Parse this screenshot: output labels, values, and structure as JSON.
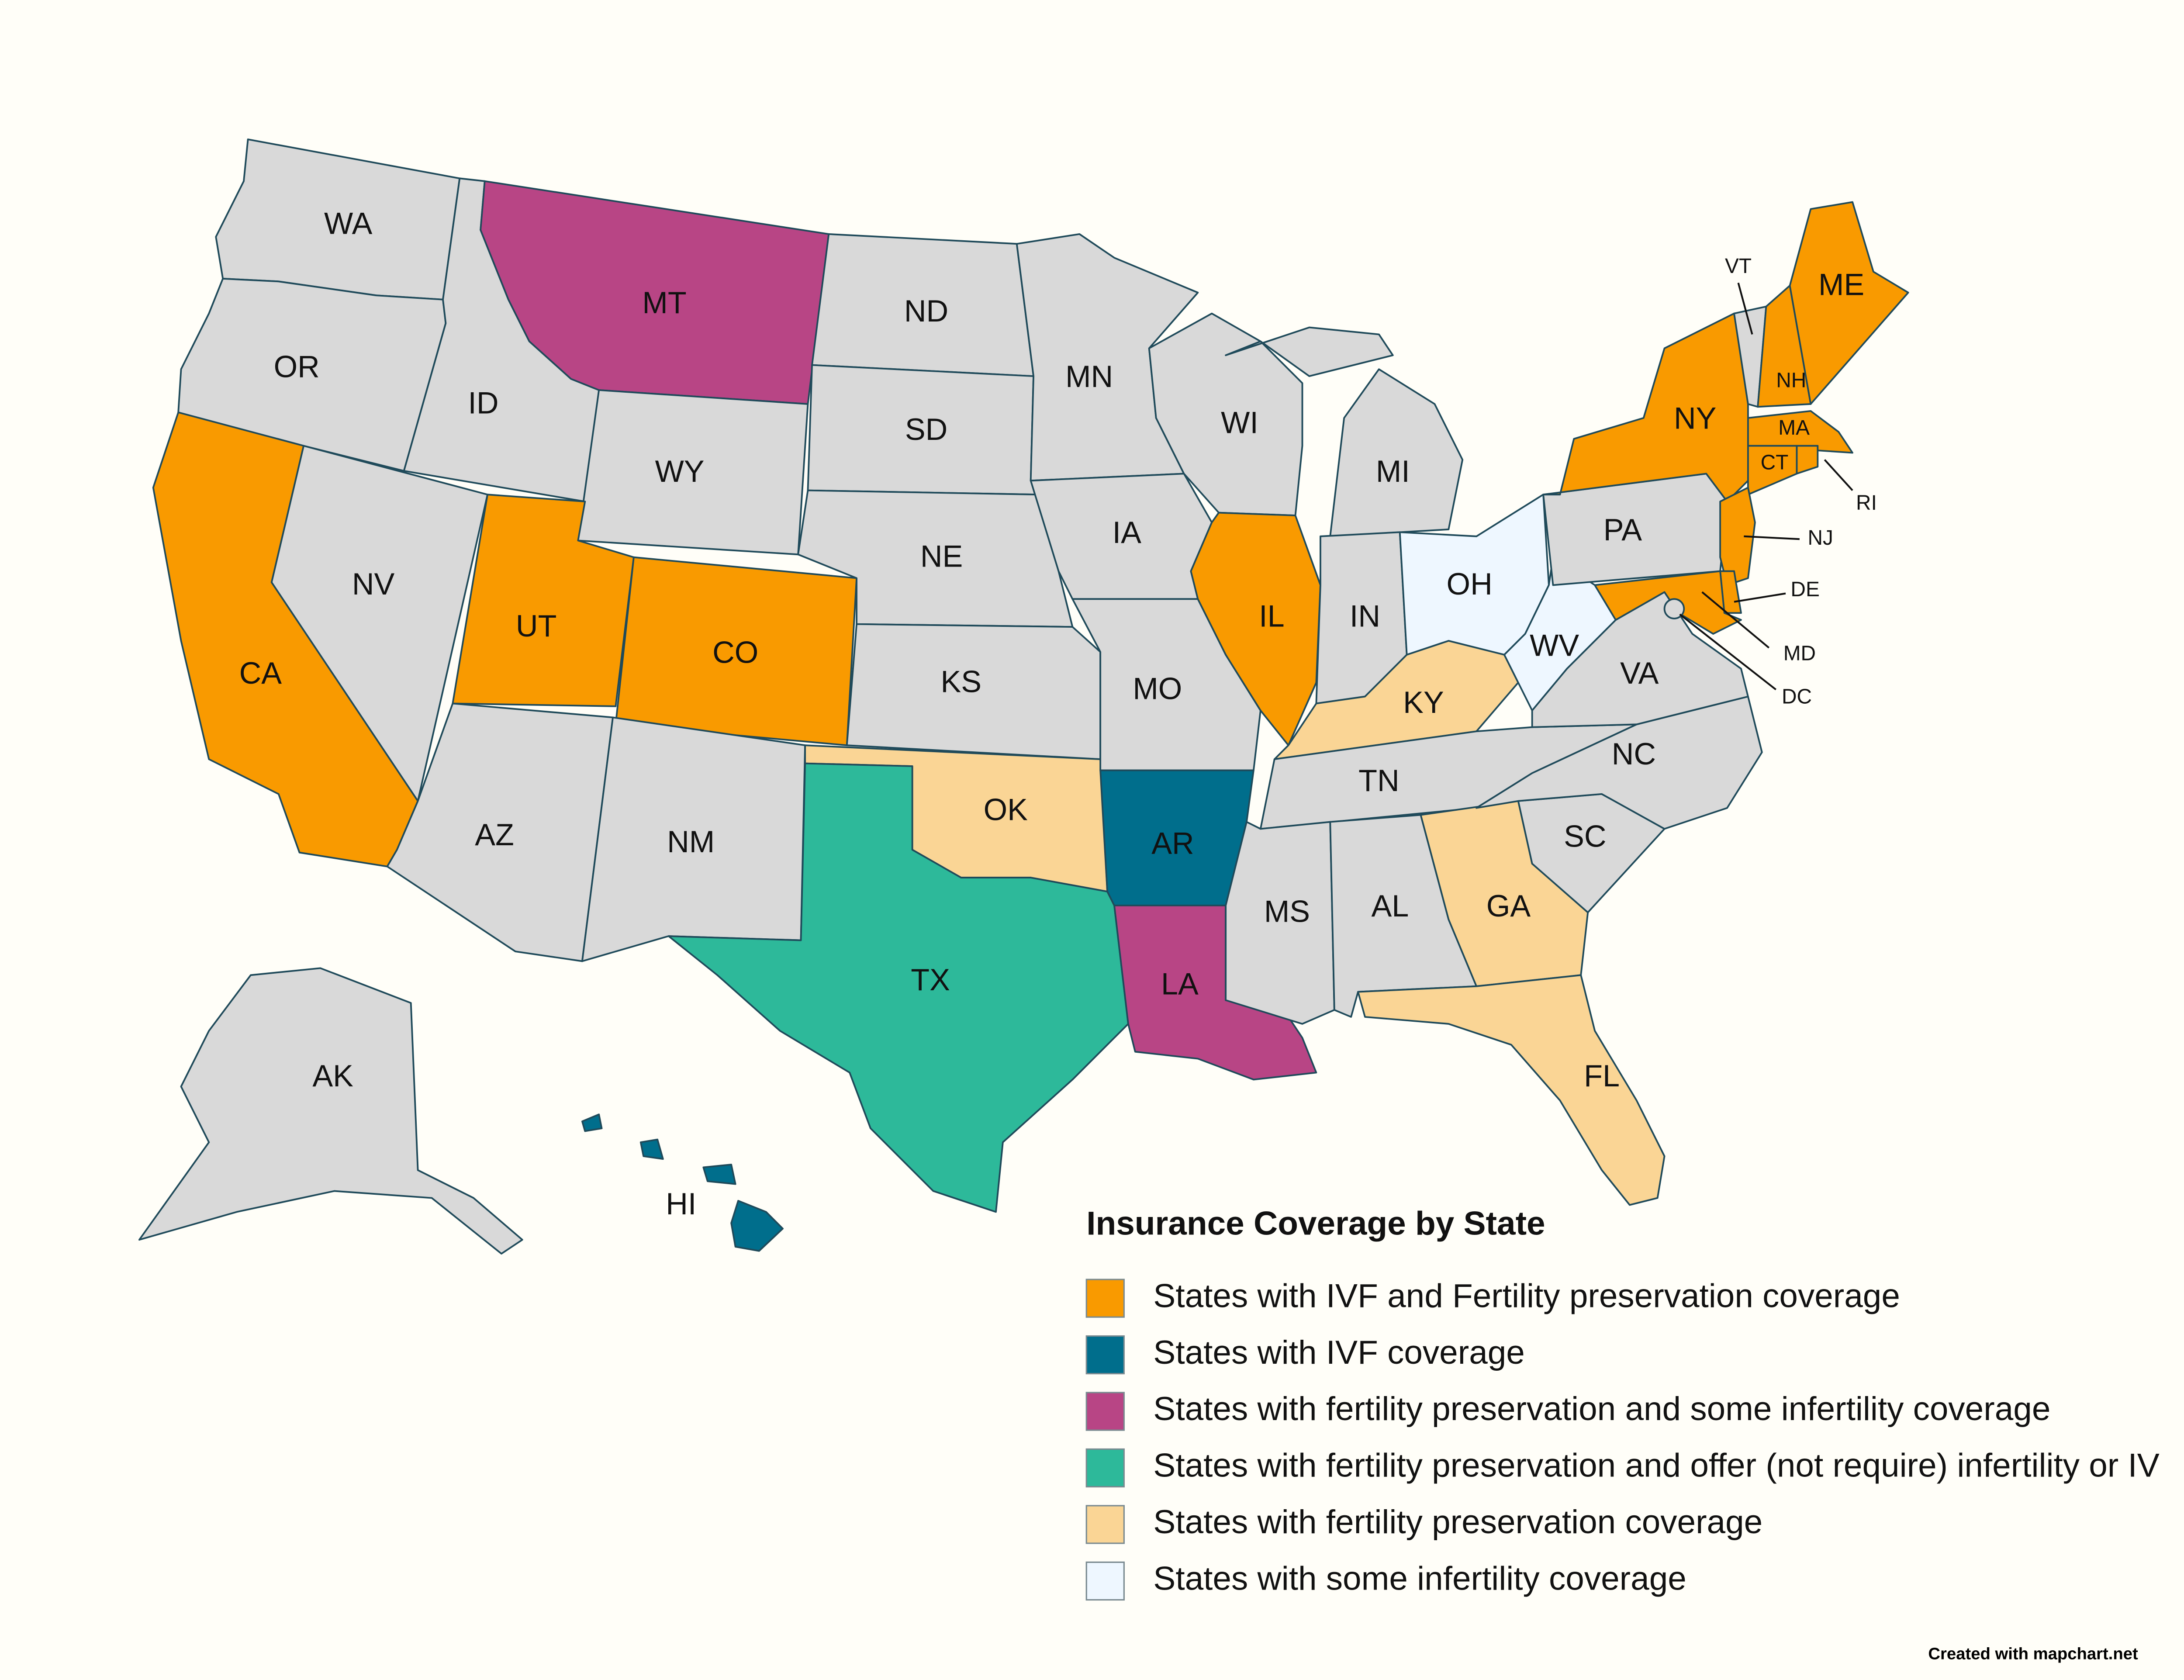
{
  "map": {
    "states": [
      {
        "label": "WA",
        "color": "#d9d9d9"
      },
      {
        "label": "OR",
        "color": "#d9d9d9"
      },
      {
        "label": "CA",
        "color": "#f99a00"
      },
      {
        "label": "ID",
        "color": "#d9d9d9"
      },
      {
        "label": "NV",
        "color": "#d9d9d9"
      },
      {
        "label": "MT",
        "color": "#b84585"
      },
      {
        "label": "WY",
        "color": "#d9d9d9"
      },
      {
        "label": "UT",
        "color": "#f99a00"
      },
      {
        "label": "CO",
        "color": "#f99a00"
      },
      {
        "label": "AZ",
        "color": "#d9d9d9"
      },
      {
        "label": "NM",
        "color": "#d9d9d9"
      },
      {
        "label": "ND",
        "color": "#d9d9d9"
      },
      {
        "label": "SD",
        "color": "#d9d9d9"
      },
      {
        "label": "NE",
        "color": "#d9d9d9"
      },
      {
        "label": "KS",
        "color": "#d9d9d9"
      },
      {
        "label": "OK",
        "color": "#fad595"
      },
      {
        "label": "TX",
        "color": "#2db99a"
      },
      {
        "label": "MN",
        "color": "#d9d9d9"
      },
      {
        "label": "IA",
        "color": "#d9d9d9"
      },
      {
        "label": "MO",
        "color": "#d9d9d9"
      },
      {
        "label": "AR",
        "color": "#006e8c"
      },
      {
        "label": "LA",
        "color": "#b84585"
      },
      {
        "label": "WI",
        "color": "#d9d9d9"
      },
      {
        "label": "IL",
        "color": "#f99a00"
      },
      {
        "label": "MI",
        "color": "#d9d9d9"
      },
      {
        "label": "IN",
        "color": "#d9d9d9"
      },
      {
        "label": "OH",
        "color": "#eef7ff"
      },
      {
        "label": "KY",
        "color": "#fad595"
      },
      {
        "label": "TN",
        "color": "#d9d9d9"
      },
      {
        "label": "MS",
        "color": "#d9d9d9"
      },
      {
        "label": "AL",
        "color": "#d9d9d9"
      },
      {
        "label": "GA",
        "color": "#fad595"
      },
      {
        "label": "FL",
        "color": "#fad595"
      },
      {
        "label": "SC",
        "color": "#d9d9d9"
      },
      {
        "label": "NC",
        "color": "#d9d9d9"
      },
      {
        "label": "VA",
        "color": "#d9d9d9"
      },
      {
        "label": "WV",
        "color": "#eef7ff"
      },
      {
        "label": "PA",
        "color": "#d9d9d9"
      },
      {
        "label": "NY",
        "color": "#f99a00"
      },
      {
        "label": "VT",
        "color": "#d9d9d9"
      },
      {
        "label": "NH",
        "color": "#f99a00"
      },
      {
        "label": "ME",
        "color": "#f99a00"
      },
      {
        "label": "MA",
        "color": "#f99a00"
      },
      {
        "label": "CT",
        "color": "#f99a00"
      },
      {
        "label": "RI",
        "color": "#f99a00"
      },
      {
        "label": "NJ",
        "color": "#f99a00"
      },
      {
        "label": "DE",
        "color": "#f99a00"
      },
      {
        "label": "MD",
        "color": "#f99a00"
      },
      {
        "label": "DC",
        "color": "#d9d9d9"
      },
      {
        "label": "AK",
        "color": "#d9d9d9"
      },
      {
        "label": "HI",
        "color": "#006e8c"
      }
    ]
  },
  "legend": {
    "title": "Insurance Coverage by State",
    "items": [
      {
        "label": "States with IVF and Fertility preservation coverage",
        "color": "#f99a00"
      },
      {
        "label": "States with IVF coverage",
        "color": "#006e8c"
      },
      {
        "label": "States with fertility preservation and some infertility coverage",
        "color": "#b84585"
      },
      {
        "label": "States with fertility preservation and offer (not require) infertility or IV",
        "color": "#2db99a"
      },
      {
        "label": "States with fertility preservation coverage",
        "color": "#fad595"
      },
      {
        "label": "States with some infertility coverage",
        "color": "#eef7ff"
      }
    ]
  },
  "credit": "Created with mapchart.net"
}
